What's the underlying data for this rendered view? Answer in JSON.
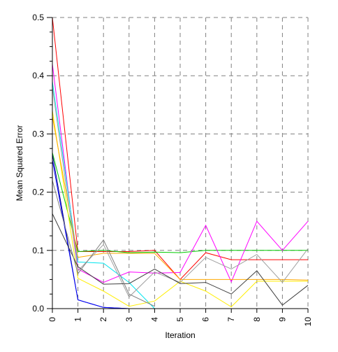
{
  "chart_data": {
    "type": "line",
    "title": "",
    "xlabel": "Iteration",
    "ylabel": "Mean Squared Error",
    "x": [
      0,
      1,
      2,
      3,
      4,
      5,
      6,
      7,
      8,
      9,
      10
    ],
    "x_tick_labels": [
      "0",
      "1",
      "2",
      "3",
      "4",
      "5",
      "6",
      "7",
      "8",
      "9",
      "10"
    ],
    "y_tick_labels": [
      "0.0",
      "0.1",
      "0.2",
      "0.3",
      "0.4",
      "0.5"
    ],
    "xlim": [
      0,
      10
    ],
    "ylim": [
      0,
      0.5
    ],
    "grid": true,
    "legend": "none",
    "series": [
      {
        "color": "#ff0000",
        "values": [
          0.5,
          0.098,
          0.098,
          0.098,
          0.1,
          0.05,
          0.096,
          0.084,
          0.084,
          0.084,
          0.084
        ]
      },
      {
        "color": "#00cc00",
        "values": [
          0.268,
          0.098,
          0.1,
          0.096,
          0.097,
          0.096,
          0.1,
          0.1,
          0.1,
          0.1,
          0.1
        ]
      },
      {
        "color": "#000080",
        "values": [
          0.265,
          0.015,
          0.002,
          0.0,
          0.0,
          null,
          null,
          null,
          null,
          null,
          null
        ]
      },
      {
        "color": "#0000ff",
        "values": [
          0.255,
          0.015,
          0.002,
          0.0,
          null,
          null,
          null,
          null,
          null,
          null,
          null
        ]
      },
      {
        "color": "#ff00ff",
        "values": [
          0.42,
          0.068,
          0.045,
          0.063,
          0.061,
          0.062,
          0.143,
          0.046,
          0.15,
          0.1,
          0.15
        ]
      },
      {
        "color": "#00e5ee",
        "values": [
          0.39,
          0.08,
          0.078,
          0.045,
          0.0,
          0.0,
          null,
          null,
          null,
          null,
          null
        ]
      },
      {
        "color": "#ffee00",
        "values": [
          0.34,
          0.052,
          0.03,
          0.004,
          0.013,
          0.047,
          0.03,
          0.003,
          0.047,
          0.047,
          0.047
        ]
      },
      {
        "color": "#ffaa00",
        "values": [
          0.33,
          0.088,
          0.095,
          0.095,
          0.095,
          0.05,
          0.05,
          0.05,
          0.05,
          0.05,
          0.049
        ]
      },
      {
        "color": "#a0a0a0",
        "values": [
          0.38,
          0.065,
          0.11,
          0.02,
          0.063,
          0.045,
          0.088,
          0.068,
          0.093,
          0.045,
          0.103
        ]
      },
      {
        "color": "#404040",
        "values": [
          0.163,
          0.072,
          0.042,
          0.043,
          0.068,
          0.043,
          0.045,
          0.025,
          0.065,
          0.006,
          0.04
        ]
      },
      {
        "color": "#808080",
        "values": [
          0.22,
          0.06,
          0.118,
          0.025,
          0.004,
          null,
          null,
          null,
          null,
          null,
          null
        ]
      }
    ]
  }
}
